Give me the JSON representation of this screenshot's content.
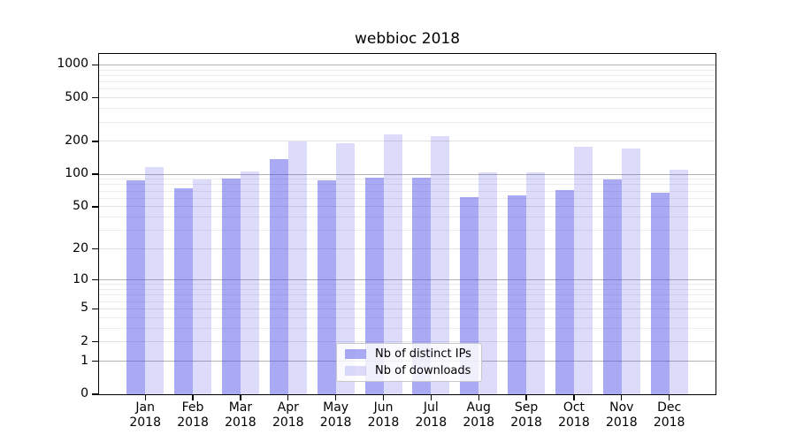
{
  "chart_data": {
    "type": "bar",
    "title": "webbioc 2018",
    "categories": [
      "Jan",
      "Feb",
      "Mar",
      "Apr",
      "May",
      "Jun",
      "Jul",
      "Aug",
      "Sep",
      "Oct",
      "Nov",
      "Dec"
    ],
    "category_year": "2018",
    "series": [
      {
        "name": "Nb of distinct IPs",
        "color": "rgba(70,70,230,0.46)",
        "values": [
          87,
          74,
          91,
          137,
          87,
          93,
          93,
          62,
          64,
          71,
          90,
          67
        ]
      },
      {
        "name": "Nb of downloads",
        "color": "rgba(70,70,230,0.19)",
        "values": [
          116,
          90,
          106,
          200,
          194,
          233,
          222,
          103,
          104,
          180,
          171,
          109
        ]
      }
    ],
    "yscale": "log1p",
    "yticks": [
      0,
      1,
      2,
      5,
      10,
      20,
      50,
      100,
      200,
      500,
      1000
    ],
    "ylim": [
      0,
      1280
    ],
    "xlabel": "",
    "ylabel": "",
    "grid": true,
    "legend_position": "lower center",
    "colors": {
      "grid_decade": "#b2b2b2",
      "grid_labeled": "#e2e2e2",
      "grid_minor": "#ececec",
      "axis": "#000000",
      "legend_border": "#c8c8c8",
      "background": "#ffffff"
    }
  }
}
